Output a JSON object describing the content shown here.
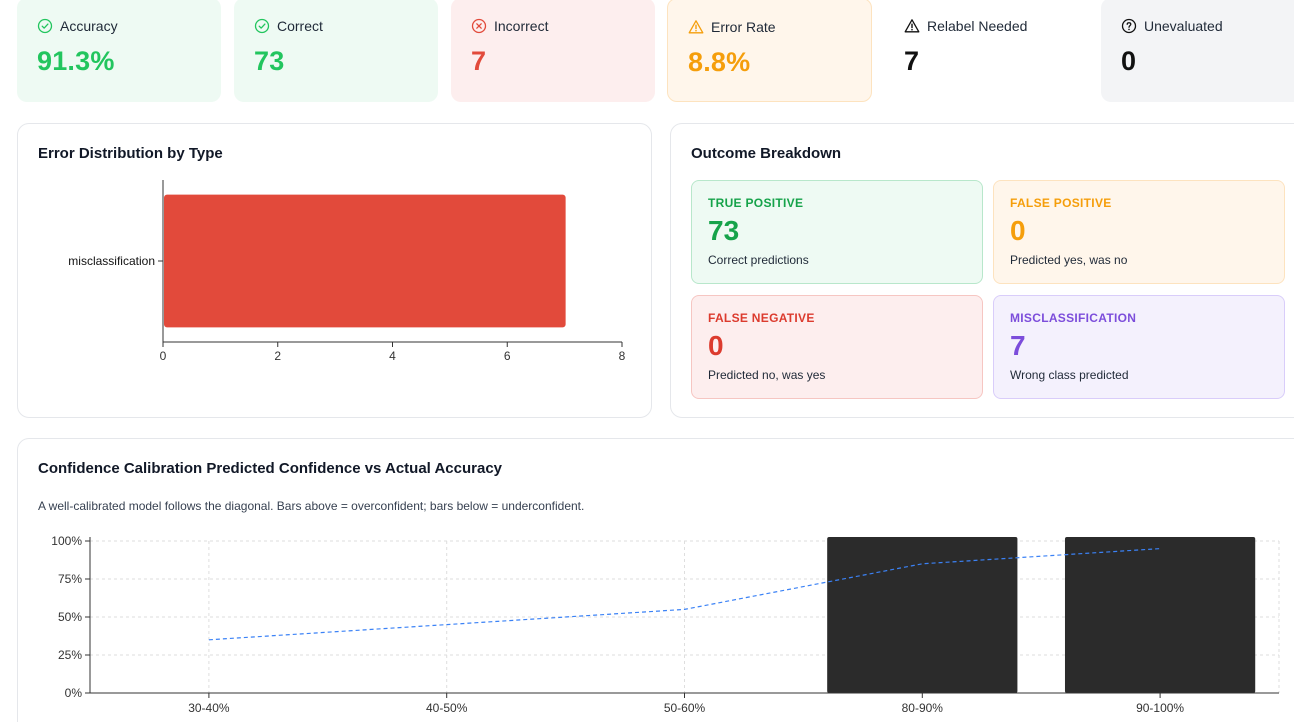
{
  "kpis": [
    {
      "label": "Accuracy",
      "value": "91.3%",
      "icon": "check-circle-icon"
    },
    {
      "label": "Correct",
      "value": "73",
      "icon": "check-circle-icon"
    },
    {
      "label": "Incorrect",
      "value": "7",
      "icon": "x-circle-icon"
    },
    {
      "label": "Error Rate",
      "value": "8.8%",
      "icon": "warning-triangle-icon"
    },
    {
      "label": "Relabel Needed",
      "value": "7",
      "icon": "warning-triangle-icon"
    },
    {
      "label": "Unevaluated",
      "value": "0",
      "icon": "question-circle-icon"
    }
  ],
  "colors": {
    "green": "#22c55e",
    "red": "#e24a3b",
    "amber": "#f59e0b",
    "purple": "#7c4ddb",
    "blue_line": "#3b82f6",
    "dark_bar": "#2b2b2b"
  },
  "error_panel": {
    "title": "Error Distribution by Type"
  },
  "outcome_panel": {
    "title": "Outcome Breakdown",
    "cells": {
      "tp": {
        "label": "TRUE POSITIVE",
        "value": "73",
        "desc": "Correct predictions"
      },
      "fp": {
        "label": "FALSE POSITIVE",
        "value": "0",
        "desc": "Predicted yes, was no"
      },
      "fn": {
        "label": "FALSE NEGATIVE",
        "value": "0",
        "desc": "Predicted no, was yes"
      },
      "mc": {
        "label": "MISCLASSIFICATION",
        "value": "7",
        "desc": "Wrong class predicted"
      }
    }
  },
  "calibration_panel": {
    "title": "Confidence Calibration Predicted Confidence vs Actual Accuracy",
    "subtitle": "A well-calibrated model follows the diagonal. Bars above = overconfident; bars below = underconfident."
  },
  "chart_data": [
    {
      "type": "bar",
      "orientation": "horizontal",
      "title": "Error Distribution by Type",
      "categories": [
        "misclassification"
      ],
      "values": [
        7
      ],
      "xlim": [
        0,
        8
      ],
      "xticks": [
        0,
        2,
        4,
        6,
        8
      ],
      "grid": false
    },
    {
      "type": "bar",
      "title": "Confidence Calibration Predicted Confidence vs Actual Accuracy",
      "categories": [
        "30-40%",
        "40-50%",
        "50-60%",
        "80-90%",
        "90-100%"
      ],
      "bar_values": [
        null,
        null,
        null,
        100,
        100
      ],
      "line_values": [
        35,
        45,
        55,
        85,
        95
      ],
      "ylim": [
        0,
        100
      ],
      "yticks": [
        "0%",
        "25%",
        "50%",
        "75%",
        "100%"
      ],
      "grid": true,
      "line_style": "dashed"
    }
  ]
}
